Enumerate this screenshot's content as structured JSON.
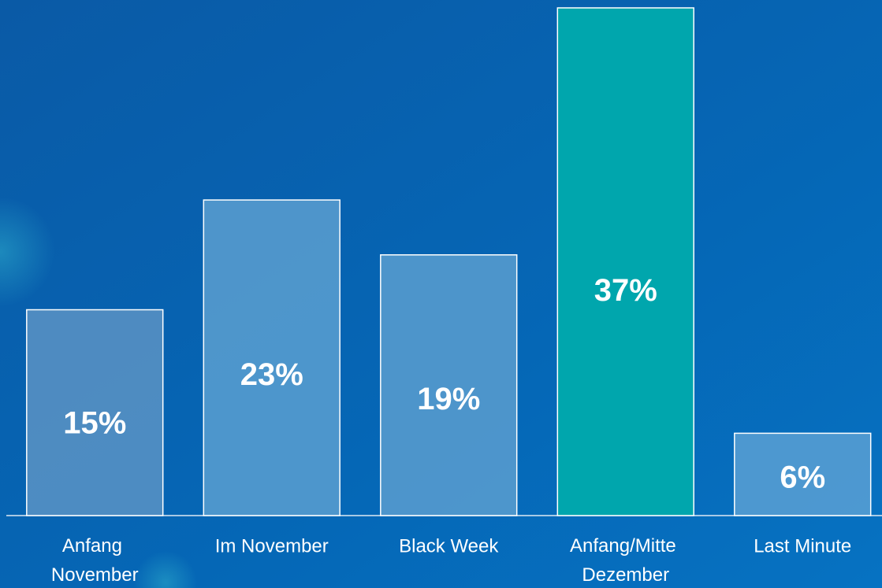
{
  "chart_data": {
    "type": "bar",
    "categories": [
      "Anfang November",
      "Im November",
      "Black Week",
      "Anfang/Mitte Dezember",
      "Last Minute"
    ],
    "values": [
      15,
      23,
      19,
      37,
      6
    ],
    "value_labels": [
      "15%",
      "23%",
      "19%",
      "37%",
      "6%"
    ],
    "colors": [
      "#5b93c4",
      "#5b9fd0",
      "#5a9dcf",
      "#00a6ad",
      "#5aa0d3"
    ]
  }
}
